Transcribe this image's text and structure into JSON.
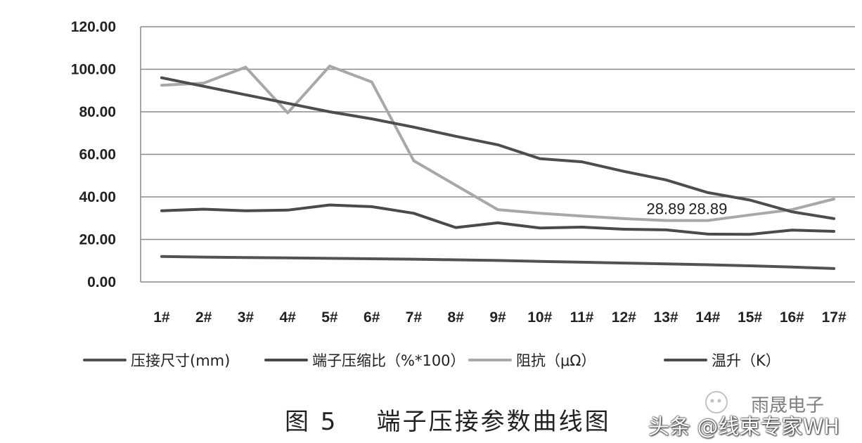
{
  "chart_data": {
    "type": "line",
    "categories": [
      "1#",
      "2#",
      "3#",
      "4#",
      "5#",
      "6#",
      "7#",
      "8#",
      "9#",
      "10#",
      "11#",
      "12#",
      "13#",
      "14#",
      "15#",
      "16#",
      "17#"
    ],
    "ylim": [
      0,
      120
    ],
    "yticks": [
      "0.00",
      "20.00",
      "40.00",
      "60.00",
      "80.00",
      "100.00",
      "120.00"
    ],
    "grid": true,
    "legend_position": "bottom",
    "series": [
      {
        "name": "压接尺寸(mm)",
        "color": "#525252",
        "values": [
          12,
          11.7,
          11.5,
          11.3,
          11.1,
          10.9,
          10.7,
          10.4,
          10.1,
          9.7,
          9.3,
          8.9,
          8.5,
          8.1,
          7.6,
          7.0,
          6.3
        ]
      },
      {
        "name": "端子压缩比（%*100）",
        "color": "#4a4a4a",
        "values": [
          33.5,
          34.2,
          33.5,
          33.8,
          36.2,
          35.4,
          32.3,
          25.6,
          27.8,
          25.4,
          25.8,
          24.8,
          24.5,
          22.5,
          22.4,
          24.4,
          23.8
        ]
      },
      {
        "name": "阻抗（μΩ）",
        "color": "#a8a8a8",
        "values": [
          92.5,
          93.5,
          101,
          79.5,
          101.5,
          94,
          57,
          45.5,
          34,
          32.3,
          31,
          29.8,
          28.89,
          28.89,
          31.5,
          34,
          39
        ]
      },
      {
        "name": "温升（K）",
        "color": "#4d4d4d",
        "values": [
          96,
          92,
          88,
          84,
          80,
          76.7,
          72.8,
          68.5,
          64.5,
          58,
          56.5,
          52,
          48,
          42,
          38.5,
          33,
          29.8
        ]
      }
    ],
    "data_labels": [
      {
        "series": "阻抗（μΩ）",
        "category": "13#",
        "text": "28.89"
      },
      {
        "series": "阻抗（μΩ）",
        "category": "14#",
        "text": "28.89"
      }
    ]
  },
  "caption": "图 5    端子压接参数曲线图",
  "watermarks": {
    "brand": "雨晟电子",
    "platform": "头条 @线束专家WH"
  }
}
